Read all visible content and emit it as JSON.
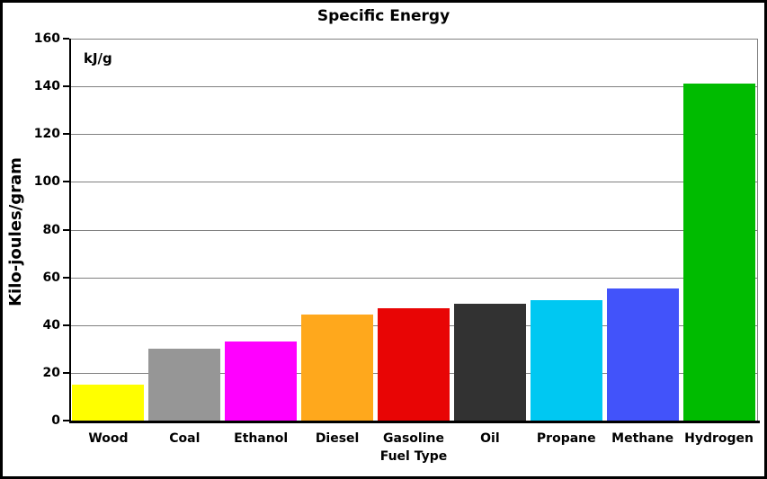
{
  "chart_data": {
    "type": "bar",
    "title": "Specific Energy",
    "annotation": "kJ/g",
    "xlabel": "Fuel Type",
    "ylabel": "Kilo-joules/gram",
    "categories": [
      "Wood",
      "Coal",
      "Ethanol",
      "Diesel",
      "Gasoline",
      "Oil",
      "Propane",
      "Methane",
      "Hydrogen"
    ],
    "values": [
      15,
      30,
      33,
      44.5,
      47,
      49,
      50.5,
      55.5,
      141
    ],
    "bar_colors": [
      "#FFFF00",
      "#969696",
      "#FF00FF",
      "#FFA81C",
      "#E80505",
      "#323232",
      "#00C8F2",
      "#4253FA",
      "#00BB00"
    ],
    "yticks": [
      0,
      20,
      40,
      60,
      80,
      100,
      120,
      140,
      160
    ],
    "ylim": [
      0,
      160
    ],
    "grid": true,
    "legend": "none",
    "gridline_color": "#808080",
    "axis_color": "#000000",
    "background_color": "#FFFFFF",
    "border_color": "#000000"
  }
}
